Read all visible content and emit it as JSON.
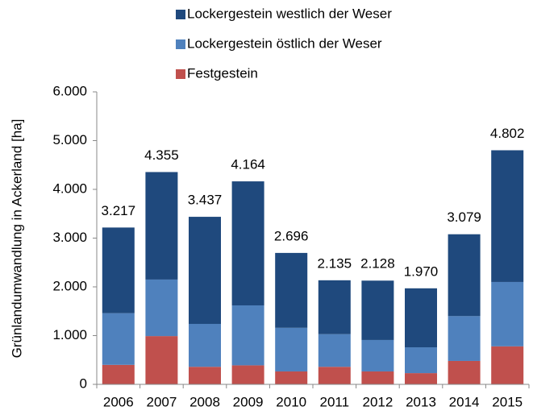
{
  "chart_data": {
    "type": "stacked-bar",
    "y_label": "Grünlandumwandlung in Ackerland [ha]",
    "categories": [
      "2006",
      "2007",
      "2008",
      "2009",
      "2010",
      "2011",
      "2012",
      "2013",
      "2014",
      "2015"
    ],
    "series": [
      {
        "name": "Festgestein",
        "color": "#c0504d",
        "values": [
          400,
          990,
          360,
          390,
          265,
          360,
          265,
          230,
          480,
          780
        ]
      },
      {
        "name": "Lockergestein östlich der Weser",
        "color": "#4f81bd",
        "values": [
          1060,
          1160,
          880,
          1230,
          895,
          670,
          645,
          530,
          920,
          1320
        ]
      },
      {
        "name": "Lockergestein westlich der Weser",
        "color": "#1f497d",
        "values": [
          1757,
          2205,
          2197,
          2544,
          1536,
          1105,
          1218,
          1210,
          1679,
          2702
        ]
      }
    ],
    "totals": {
      "values": [
        3217,
        4355,
        3437,
        4164,
        2696,
        2135,
        2128,
        1970,
        3079,
        4802
      ],
      "value_labels": [
        "3.217",
        "4.355",
        "3.437",
        "4.164",
        "2.696",
        "2.135",
        "2.128",
        "1.970",
        "3.079",
        "4.802"
      ]
    },
    "ylim": [
      0,
      6000
    ],
    "yticks": [
      0,
      {
        "value": 1000,
        "label": "1.000"
      },
      {
        "value": 2000,
        "label": "2.000"
      },
      {
        "value": 3000,
        "label": "3.000"
      },
      {
        "value": 4000,
        "label": "4.000"
      },
      {
        "value": 5000,
        "label": "5.000"
      },
      {
        "value": 6000,
        "label": "6.000"
      }
    ]
  }
}
